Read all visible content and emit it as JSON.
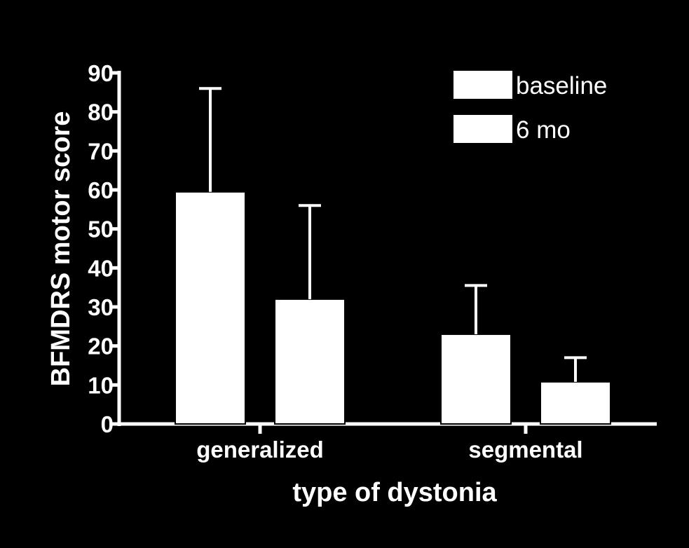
{
  "chart_data": {
    "type": "bar",
    "title": "",
    "xlabel": "type of dystonia",
    "ylabel": "BFMDRS motor score",
    "categories": [
      "generalized",
      "segmental"
    ],
    "series": [
      {
        "name": "baseline",
        "values": [
          59.5,
          23
        ],
        "error_upper": [
          86,
          35.5
        ]
      },
      {
        "name": "6 mo",
        "values": [
          32,
          10.8
        ],
        "error_upper": [
          56,
          17
        ]
      }
    ],
    "ylim": [
      0,
      90
    ],
    "yticks": [
      "0",
      "10",
      "20",
      "30",
      "40",
      "50",
      "60",
      "70",
      "80",
      "90"
    ],
    "grid": false,
    "legend_position": "top-right",
    "colors": {
      "background": "#000000",
      "foreground": "#ffffff",
      "bar_fill": "#ffffff",
      "bar_edge": "#000000"
    }
  }
}
